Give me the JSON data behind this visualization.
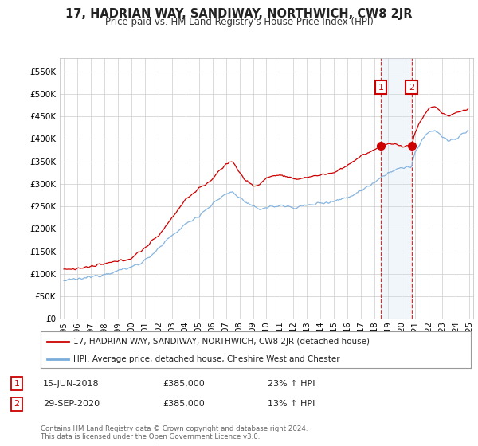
{
  "title": "17, HADRIAN WAY, SANDIWAY, NORTHWICH, CW8 2JR",
  "subtitle": "Price paid vs. HM Land Registry's House Price Index (HPI)",
  "legend_line1": "17, HADRIAN WAY, SANDIWAY, NORTHWICH, CW8 2JR (detached house)",
  "legend_line2": "HPI: Average price, detached house, Cheshire West and Chester",
  "annotation1_label": "1",
  "annotation1_date": "15-JUN-2018",
  "annotation1_price": "£385,000",
  "annotation1_hpi": "23% ↑ HPI",
  "annotation2_label": "2",
  "annotation2_date": "29-SEP-2020",
  "annotation2_price": "£385,000",
  "annotation2_hpi": "13% ↑ HPI",
  "footer": "Contains HM Land Registry data © Crown copyright and database right 2024.\nThis data is licensed under the Open Government Licence v3.0.",
  "red_color": "#cc0000",
  "blue_color": "#7aaddb",
  "background_color": "#ffffff",
  "grid_color": "#cccccc",
  "annotation_box_color": "#cc0000",
  "annotation_shade_color": "#ddeeff",
  "ylim_min": 0,
  "ylim_max": 580000,
  "ytick_step": 50000,
  "sale1_year": 2018.46,
  "sale2_year": 2020.75,
  "sale1_price": 385000,
  "sale2_price": 385000,
  "xstart": 1995,
  "xend": 2025
}
